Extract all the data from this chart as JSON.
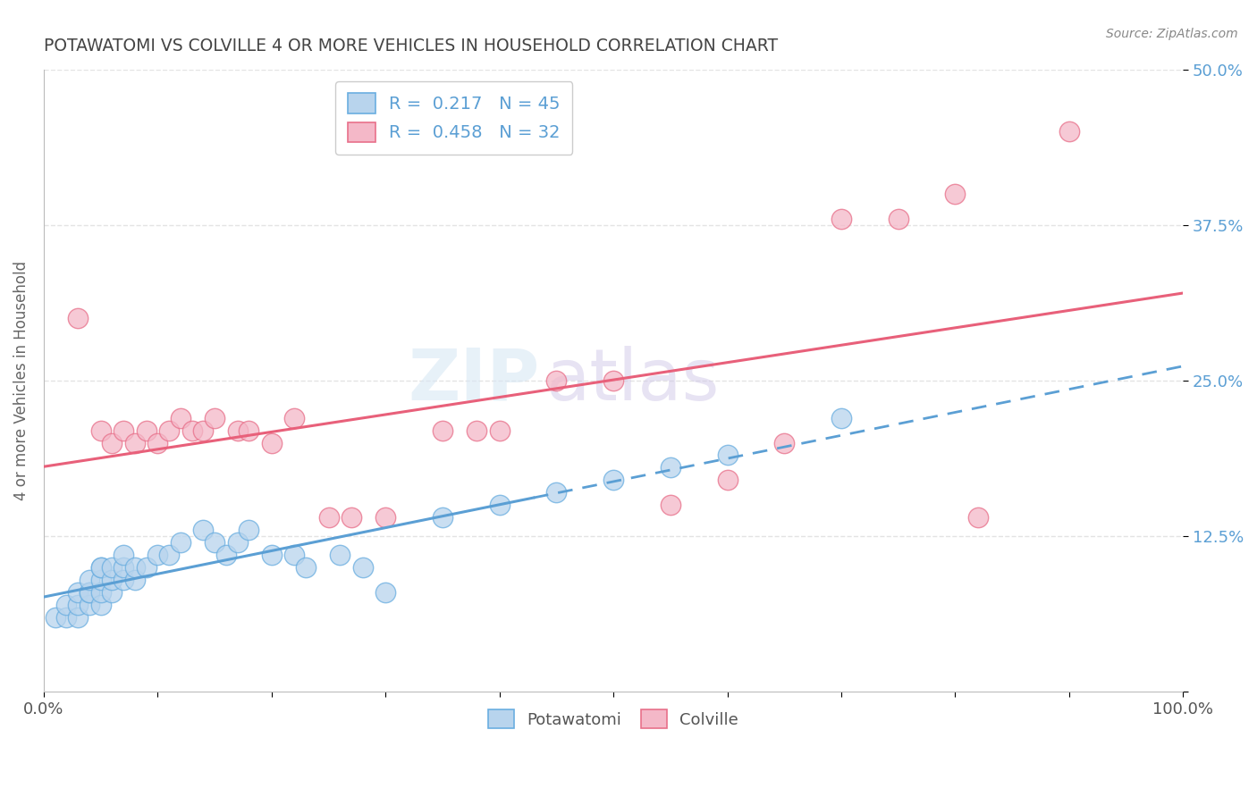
{
  "title": "POTAWATOMI VS COLVILLE 4 OR MORE VEHICLES IN HOUSEHOLD CORRELATION CHART",
  "source": "Source: ZipAtlas.com",
  "ylabel": "4 or more Vehicles in Household",
  "xlim": [
    0,
    100
  ],
  "ylim": [
    0,
    50
  ],
  "yticks": [
    0,
    12.5,
    25.0,
    37.5,
    50.0
  ],
  "ytick_labels": [
    "",
    "12.5%",
    "25.0%",
    "37.5%",
    "50.0%"
  ],
  "xtick_labels_left": "0.0%",
  "xtick_labels_right": "100.0%",
  "blue_color": "#b8d4ed",
  "pink_color": "#f4b8c8",
  "blue_edge_color": "#6aaee0",
  "pink_edge_color": "#e8708a",
  "blue_line_color": "#5b9fd4",
  "pink_line_color": "#e8607a",
  "tick_label_color": "#5b9fd4",
  "title_color": "#444444",
  "source_color": "#888888",
  "grid_color": "#dddddd",
  "background_color": "#ffffff",
  "blue_scatter": [
    [
      1,
      6
    ],
    [
      2,
      6
    ],
    [
      2,
      7
    ],
    [
      3,
      6
    ],
    [
      3,
      7
    ],
    [
      3,
      8
    ],
    [
      4,
      7
    ],
    [
      4,
      8
    ],
    [
      4,
      8
    ],
    [
      4,
      9
    ],
    [
      5,
      7
    ],
    [
      5,
      8
    ],
    [
      5,
      9
    ],
    [
      5,
      10
    ],
    [
      5,
      10
    ],
    [
      6,
      8
    ],
    [
      6,
      9
    ],
    [
      6,
      10
    ],
    [
      7,
      9
    ],
    [
      7,
      10
    ],
    [
      7,
      11
    ],
    [
      8,
      9
    ],
    [
      8,
      10
    ],
    [
      9,
      10
    ],
    [
      10,
      11
    ],
    [
      11,
      11
    ],
    [
      12,
      12
    ],
    [
      14,
      13
    ],
    [
      15,
      12
    ],
    [
      16,
      11
    ],
    [
      17,
      12
    ],
    [
      18,
      13
    ],
    [
      20,
      11
    ],
    [
      22,
      11
    ],
    [
      23,
      10
    ],
    [
      26,
      11
    ],
    [
      28,
      10
    ],
    [
      30,
      8
    ],
    [
      35,
      14
    ],
    [
      40,
      15
    ],
    [
      45,
      16
    ],
    [
      50,
      17
    ],
    [
      55,
      18
    ],
    [
      60,
      19
    ],
    [
      70,
      22
    ]
  ],
  "pink_scatter": [
    [
      3,
      30
    ],
    [
      5,
      21
    ],
    [
      6,
      20
    ],
    [
      7,
      21
    ],
    [
      8,
      20
    ],
    [
      9,
      21
    ],
    [
      10,
      20
    ],
    [
      11,
      21
    ],
    [
      12,
      22
    ],
    [
      13,
      21
    ],
    [
      14,
      21
    ],
    [
      15,
      22
    ],
    [
      17,
      21
    ],
    [
      18,
      21
    ],
    [
      20,
      20
    ],
    [
      22,
      22
    ],
    [
      25,
      14
    ],
    [
      27,
      14
    ],
    [
      30,
      14
    ],
    [
      35,
      21
    ],
    [
      38,
      21
    ],
    [
      40,
      21
    ],
    [
      45,
      25
    ],
    [
      50,
      25
    ],
    [
      55,
      15
    ],
    [
      60,
      17
    ],
    [
      65,
      20
    ],
    [
      70,
      38
    ],
    [
      75,
      38
    ],
    [
      80,
      40
    ],
    [
      82,
      14
    ],
    [
      90,
      45
    ]
  ],
  "blue_line_solid_end": 43,
  "watermark_zip": "ZIP",
  "watermark_atlas": "atlas",
  "legend_entries": [
    {
      "r": "R = 0.217",
      "n": "N = 45"
    },
    {
      "r": "R = 0.458",
      "n": "N = 32"
    }
  ]
}
